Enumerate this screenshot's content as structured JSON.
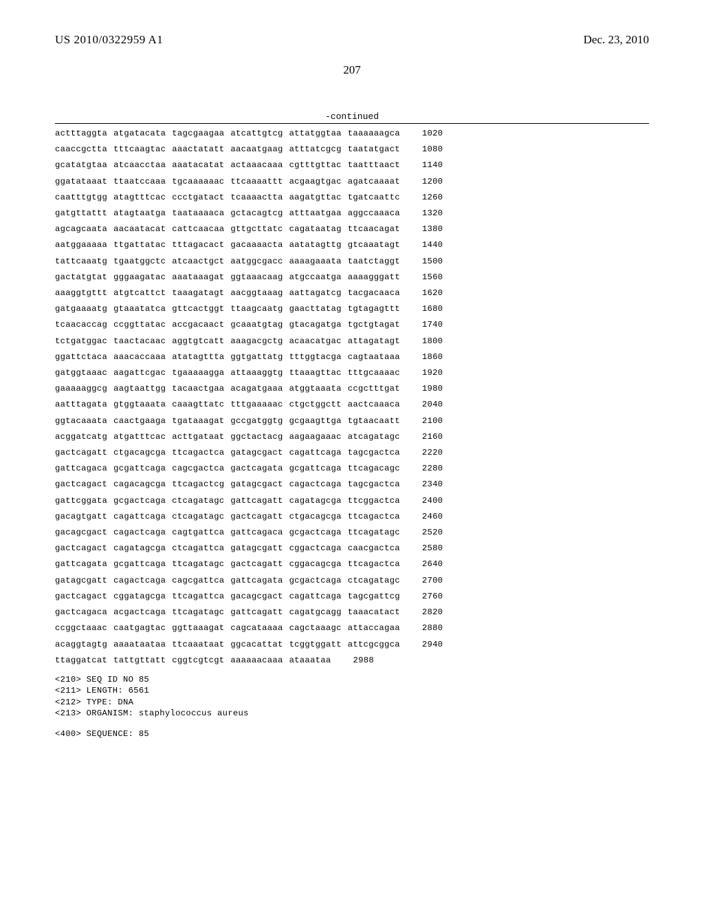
{
  "header": {
    "publication_number": "US 2010/0322959 A1",
    "publication_date": "Dec. 23, 2010"
  },
  "page_number": "207",
  "continued_label": "-continued",
  "sequence_rows": [
    {
      "groups": [
        "actttaggta",
        "atgatacata",
        "tagcgaagaa",
        "atcattgtcg",
        "attatggtaa",
        "taaaaaagca"
      ],
      "pos": "1020"
    },
    {
      "groups": [
        "caaccgctta",
        "tttcaagtac",
        "aaactatatt",
        "aacaatgaag",
        "atttatcgcg",
        "taatatgact"
      ],
      "pos": "1080"
    },
    {
      "groups": [
        "gcatatgtaa",
        "atcaacctaa",
        "aaatacatat",
        "actaaacaaa",
        "cgtttgttac",
        "taatttaact"
      ],
      "pos": "1140"
    },
    {
      "groups": [
        "ggatataaat",
        "ttaatccaaa",
        "tgcaaaaaac",
        "ttcaaaattt",
        "acgaagtgac",
        "agatcaaaat"
      ],
      "pos": "1200"
    },
    {
      "groups": [
        "caatttgtgg",
        "atagtttcac",
        "ccctgatact",
        "tcaaaactta",
        "aagatgttac",
        "tgatcaattc"
      ],
      "pos": "1260"
    },
    {
      "groups": [
        "gatgttattt",
        "atagtaatga",
        "taataaaaca",
        "gctacagtcg",
        "atttaatgaa",
        "aggccaaaca"
      ],
      "pos": "1320"
    },
    {
      "groups": [
        "agcagcaata",
        "aacaatacat",
        "cattcaacaa",
        "gttgcttatc",
        "cagataatag",
        "ttcaacagat"
      ],
      "pos": "1380"
    },
    {
      "groups": [
        "aatggaaaaa",
        "ttgattatac",
        "tttagacact",
        "gacaaaacta",
        "aatatagttg",
        "gtcaaatagt"
      ],
      "pos": "1440"
    },
    {
      "groups": [
        "tattcaaatg",
        "tgaatggctc",
        "atcaactgct",
        "aatggcgacc",
        "aaaagaaata",
        "taatctaggt"
      ],
      "pos": "1500"
    },
    {
      "groups": [
        "gactatgtat",
        "gggaagatac",
        "aaataaagat",
        "ggtaaacaag",
        "atgccaatga",
        "aaaagggatt"
      ],
      "pos": "1560"
    },
    {
      "groups": [
        "aaaggtgttt",
        "atgtcattct",
        "taaagatagt",
        "aacggtaaag",
        "aattagatcg",
        "tacgacaaca"
      ],
      "pos": "1620"
    },
    {
      "groups": [
        "gatgaaaatg",
        "gtaaatatca",
        "gttcactggt",
        "ttaagcaatg",
        "gaacttatag",
        "tgtagagttt"
      ],
      "pos": "1680"
    },
    {
      "groups": [
        "tcaacaccag",
        "ccggttatac",
        "accgacaact",
        "gcaaatgtag",
        "gtacagatga",
        "tgctgtagat"
      ],
      "pos": "1740"
    },
    {
      "groups": [
        "tctgatggac",
        "taactacaac",
        "aggtgtcatt",
        "aaagacgctg",
        "acaacatgac",
        "attagatagt"
      ],
      "pos": "1800"
    },
    {
      "groups": [
        "ggattctaca",
        "aaacaccaaa",
        "atatagttta",
        "ggtgattatg",
        "tttggtacga",
        "cagtaataaa"
      ],
      "pos": "1860"
    },
    {
      "groups": [
        "gatggtaaac",
        "aagattcgac",
        "tgaaaaagga",
        "attaaaggtg",
        "ttaaagttac",
        "tttgcaaaac"
      ],
      "pos": "1920"
    },
    {
      "groups": [
        "gaaaaaggcg",
        "aagtaattgg",
        "tacaactgaa",
        "acagatgaaa",
        "atggtaaata",
        "ccgctttgat"
      ],
      "pos": "1980"
    },
    {
      "groups": [
        "aatttagata",
        "gtggtaaata",
        "caaagttatc",
        "tttgaaaaac",
        "ctgctggctt",
        "aactcaaaca"
      ],
      "pos": "2040"
    },
    {
      "groups": [
        "ggtacaaata",
        "caactgaaga",
        "tgataaagat",
        "gccgatggtg",
        "gcgaagttga",
        "tgtaacaatt"
      ],
      "pos": "2100"
    },
    {
      "groups": [
        "acggatcatg",
        "atgatttcac",
        "acttgataat",
        "ggctactacg",
        "aagaagaaac",
        "atcagatagc"
      ],
      "pos": "2160"
    },
    {
      "groups": [
        "gactcagatt",
        "ctgacagcga",
        "ttcagactca",
        "gatagcgact",
        "cagattcaga",
        "tagcgactca"
      ],
      "pos": "2220"
    },
    {
      "groups": [
        "gattcagaca",
        "gcgattcaga",
        "cagcgactca",
        "gactcagata",
        "gcgattcaga",
        "ttcagacagc"
      ],
      "pos": "2280"
    },
    {
      "groups": [
        "gactcagact",
        "cagacagcga",
        "ttcagactcg",
        "gatagcgact",
        "cagactcaga",
        "tagcgactca"
      ],
      "pos": "2340"
    },
    {
      "groups": [
        "gattcggata",
        "gcgactcaga",
        "ctcagatagc",
        "gattcagatt",
        "cagatagcga",
        "ttcggactca"
      ],
      "pos": "2400"
    },
    {
      "groups": [
        "gacagtgatt",
        "cagattcaga",
        "ctcagatagc",
        "gactcagatt",
        "ctgacagcga",
        "ttcagactca"
      ],
      "pos": "2460"
    },
    {
      "groups": [
        "gacagcgact",
        "cagactcaga",
        "cagtgattca",
        "gattcagaca",
        "gcgactcaga",
        "ttcagatagc"
      ],
      "pos": "2520"
    },
    {
      "groups": [
        "gactcagact",
        "cagatagcga",
        "ctcagattca",
        "gatagcgatt",
        "cggactcaga",
        "caacgactca"
      ],
      "pos": "2580"
    },
    {
      "groups": [
        "gattcagata",
        "gcgattcaga",
        "ttcagatagc",
        "gactcagatt",
        "cggacagcga",
        "ttcagactca"
      ],
      "pos": "2640"
    },
    {
      "groups": [
        "gatagcgatt",
        "cagactcaga",
        "cagcgattca",
        "gattcagata",
        "gcgactcaga",
        "ctcagatagc"
      ],
      "pos": "2700"
    },
    {
      "groups": [
        "gactcagact",
        "cggatagcga",
        "ttcagattca",
        "gacagcgact",
        "cagattcaga",
        "tagcgattcg"
      ],
      "pos": "2760"
    },
    {
      "groups": [
        "gactcagaca",
        "acgactcaga",
        "ttcagatagc",
        "gattcagatt",
        "cagatgcagg",
        "taaacatact"
      ],
      "pos": "2820"
    },
    {
      "groups": [
        "ccggctaaac",
        "caatgagtac",
        "ggttaaagat",
        "cagcataaaa",
        "cagctaaagc",
        "attaccagaa"
      ],
      "pos": "2880"
    },
    {
      "groups": [
        "acaggtagtg",
        "aaaataataa",
        "ttcaaataat",
        "ggcacattat",
        "tcggtggatt",
        "attcgcggca"
      ],
      "pos": "2940"
    },
    {
      "groups": [
        "ttaggatcat",
        "tattgttatt",
        "cggtcgtcgt",
        "aaaaaacaaa",
        "ataaataa"
      ],
      "pos": "2988"
    }
  ],
  "meta": {
    "seqid_line": "<210> SEQ ID NO 85",
    "length_line": "<211> LENGTH: 6561",
    "type_line": "<212> TYPE: DNA",
    "organism_line": "<213> ORGANISM: staphylococcus aureus"
  },
  "sequence_header": "<400> SEQUENCE: 85"
}
